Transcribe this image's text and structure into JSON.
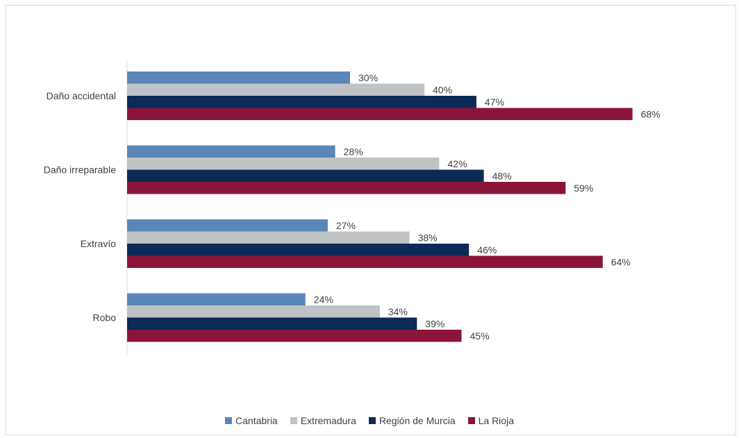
{
  "chart_data": {
    "type": "bar",
    "orientation": "horizontal",
    "categories": [
      "Daño accidental",
      "Daño irreparable",
      "Extravío",
      "Robo"
    ],
    "series": [
      {
        "name": "Cantabria",
        "color": "#5b87b8",
        "values": [
          30,
          28,
          27,
          24
        ],
        "labels": [
          "30%",
          "28%",
          "27%",
          "24%"
        ]
      },
      {
        "name": "Extremadura",
        "color": "#bfc3c6",
        "values": [
          40,
          42,
          38,
          34
        ],
        "labels": [
          "40%",
          "42%",
          "38%",
          "34%"
        ]
      },
      {
        "name": "Región de Murcia",
        "color": "#0b2a55",
        "values": [
          47,
          48,
          46,
          39
        ],
        "labels": [
          "47%",
          "48%",
          "46%",
          "39%"
        ]
      },
      {
        "name": "La Rioja",
        "color": "#8a1538",
        "values": [
          68,
          59,
          64,
          45
        ],
        "labels": [
          "68%",
          "59%",
          "64%",
          "45%"
        ]
      }
    ],
    "xlim": [
      0,
      80
    ],
    "grid": false,
    "legend_position": "bottom",
    "title": "",
    "xlabel": "",
    "ylabel": ""
  }
}
